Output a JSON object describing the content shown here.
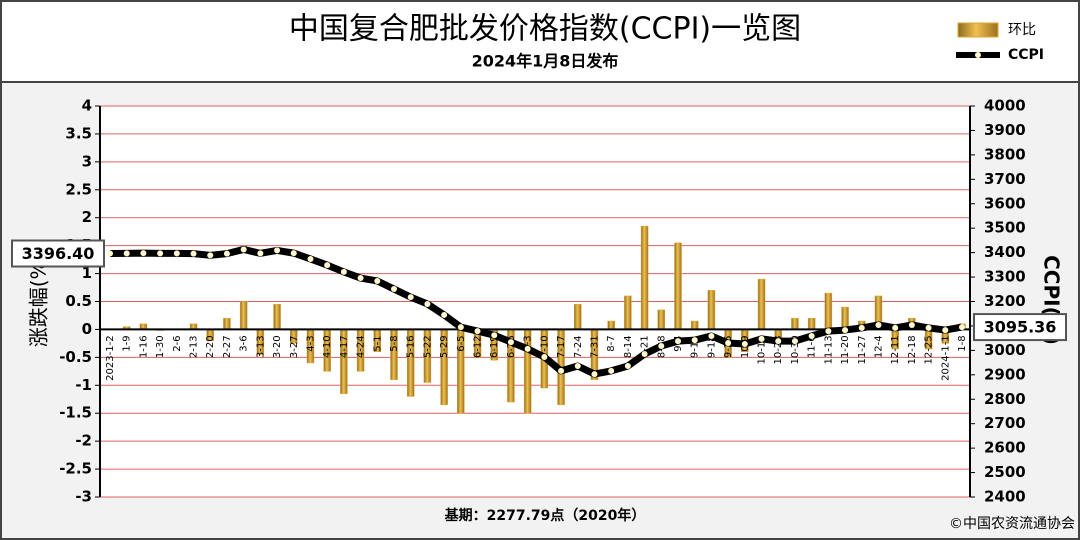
{
  "chart_data": {
    "type": "bar-line",
    "title": "中国复合肥批发价格指数(CCPI)一览图",
    "subtitle": "2024年1月8日发布",
    "ylabel": "涨跌幅(%)",
    "y2label": "CCPI(点)",
    "footnote": "基期：2277.79点（2020年）",
    "source": "©中国农资流通协会",
    "categories": [
      "2023-1-2",
      "1-9",
      "1-16",
      "1-30",
      "2-6",
      "2-13",
      "2-20",
      "2-27",
      "3-6",
      "3-13",
      "3-20",
      "3-27",
      "4-3",
      "4-10",
      "4-17",
      "4-24",
      "5-1",
      "5-8",
      "5-16",
      "5-22",
      "5-29",
      "6-5",
      "6-12",
      "6-19",
      "6-26",
      "7-3",
      "7-10",
      "7-17",
      "7-24",
      "7-31",
      "8-7",
      "8-14",
      "8-21",
      "8-28",
      "9-4",
      "9-11",
      "9-18",
      "9-25",
      "10-9",
      "10-16",
      "10-23",
      "10-30",
      "11-6",
      "11-13",
      "11-20",
      "11-27",
      "12-4",
      "12-11",
      "12-18",
      "12-25",
      "2024-1-1",
      "1-8"
    ],
    "series": [
      {
        "name": "环比",
        "type": "bar",
        "color": "#e0a52f",
        "values": [
          0,
          0.05,
          0.1,
          -0.02,
          0,
          0.1,
          -0.2,
          0.2,
          0.5,
          -0.45,
          0.45,
          -0.25,
          -0.6,
          -0.75,
          -1.15,
          -0.75,
          -0.4,
          -0.9,
          -1.2,
          -0.95,
          -1.35,
          -1.5,
          -0.5,
          -0.55,
          -1.3,
          -1.5,
          -1.05,
          -1.35,
          0.45,
          -0.9,
          0.15,
          0.6,
          1.85,
          0.35,
          1.55,
          0.15,
          0.7,
          -0.5,
          -0.4,
          0.9,
          -0.25,
          0.2,
          0.2,
          0.65,
          0.4,
          0.15,
          0.6,
          -0.35,
          0.2,
          -0.35,
          -0.25,
          0.1
        ]
      },
      {
        "name": "CCPI",
        "type": "line",
        "axis": "y2",
        "color": "#000000",
        "values": [
          3396.4,
          3397,
          3398,
          3397,
          3397,
          3396,
          3389,
          3396,
          3413,
          3397,
          3409,
          3398,
          3374,
          3349,
          3321,
          3296,
          3284,
          3251,
          3218,
          3190,
          3145,
          3095,
          3079,
          3062,
          3034,
          3006,
          2973,
          2916,
          2936,
          2903,
          2916,
          2936,
          2985,
          3018,
          3038,
          3042,
          3059,
          3030,
          3026,
          3047,
          3038,
          3038,
          3059,
          3079,
          3083,
          3092,
          3104,
          3092,
          3104,
          3092,
          3083,
          3095.36
        ],
        "value_labels": [
          "3396.40",
          null,
          null,
          null,
          null,
          null,
          null,
          null,
          null,
          null,
          null,
          null,
          null,
          null,
          null,
          null,
          null,
          null,
          null,
          null,
          null,
          null,
          null,
          null,
          null,
          null,
          null,
          null,
          null,
          null,
          null,
          null,
          null,
          null,
          null,
          null,
          null,
          null,
          null,
          null,
          null,
          null,
          null,
          null,
          null,
          null,
          null,
          null,
          null,
          null,
          null,
          "3095.36"
        ]
      }
    ],
    "ylim": [
      -3,
      4
    ],
    "yticks": [
      -3,
      -2.5,
      -2,
      -1.5,
      -1,
      -0.5,
      0,
      0.5,
      1,
      1.5,
      2,
      2.5,
      3,
      3.5,
      4
    ],
    "y2lim": [
      2400,
      4000
    ],
    "y2ticks": [
      2400,
      2500,
      2600,
      2700,
      2800,
      2900,
      3000,
      3100,
      3200,
      3300,
      3400,
      3500,
      3600,
      3700,
      3800,
      3900,
      4000
    ],
    "grid": true,
    "grid_color": "#e06060",
    "legend": "upper right"
  }
}
